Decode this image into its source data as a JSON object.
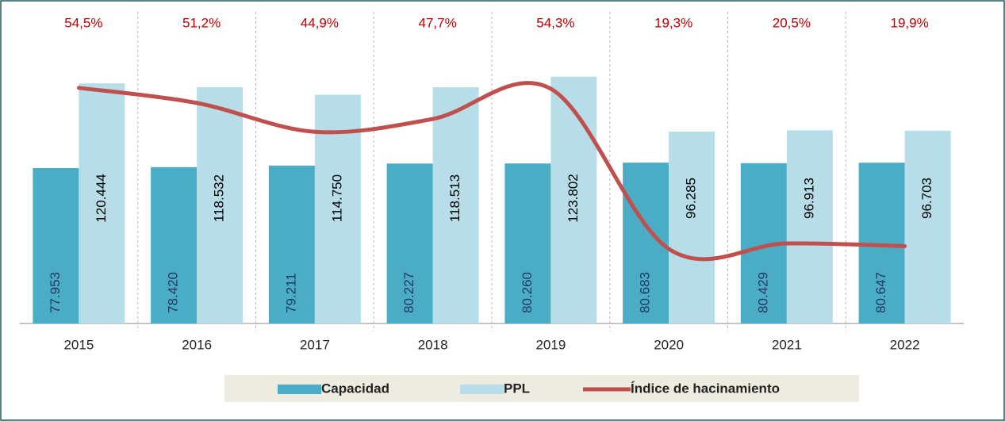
{
  "chart_data": {
    "type": "bar",
    "categories": [
      "2015",
      "2016",
      "2017",
      "2018",
      "2019",
      "2020",
      "2021",
      "2022"
    ],
    "series": [
      {
        "name": "Capacidad",
        "color": "#4bacc6",
        "values": [
          77953,
          78420,
          79211,
          80227,
          80260,
          80683,
          80429,
          80647
        ],
        "value_labels": [
          "77.953",
          "78.420",
          "79.211",
          "80.227",
          "80.260",
          "80.683",
          "80.429",
          "80.647"
        ]
      },
      {
        "name": "PPL",
        "color": "#b7dee8",
        "values": [
          120444,
          118532,
          114750,
          118513,
          123802,
          96285,
          96913,
          96703
        ],
        "value_labels": [
          "120.444",
          "118.532",
          "114.750",
          "118.513",
          "123.802",
          "96.285",
          "96.913",
          "96.703"
        ]
      },
      {
        "name": "Índice de hacinamiento",
        "color": "#c0504d",
        "type": "line",
        "axis": "y2",
        "values": [
          54.5,
          51.2,
          44.9,
          47.7,
          54.3,
          19.3,
          20.5,
          19.9
        ],
        "value_labels": [
          "54,5%",
          "51,2%",
          "44,9%",
          "47,7%",
          "54,3%",
          "19,3%",
          "20,5%",
          "19,9%"
        ]
      }
    ],
    "ylim": [
      0,
      140000
    ],
    "y2lim": [
      3,
      64
    ],
    "legend": "bottom"
  }
}
